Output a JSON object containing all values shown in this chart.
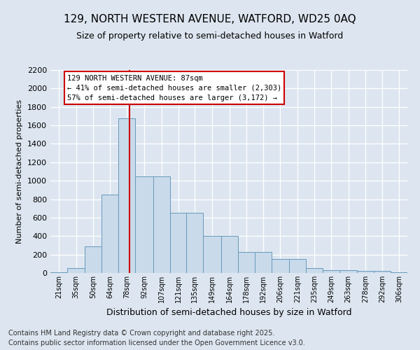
{
  "title": "129, NORTH WESTERN AVENUE, WATFORD, WD25 0AQ",
  "subtitle": "Size of property relative to semi-detached houses in Watford",
  "xlabel": "Distribution of semi-detached houses by size in Watford",
  "ylabel": "Number of semi-detached properties",
  "categories": [
    "21sqm",
    "35sqm",
    "50sqm",
    "64sqm",
    "78sqm",
    "92sqm",
    "107sqm",
    "121sqm",
    "135sqm",
    "149sqm",
    "164sqm",
    "178sqm",
    "192sqm",
    "206sqm",
    "221sqm",
    "235sqm",
    "249sqm",
    "263sqm",
    "278sqm",
    "292sqm",
    "306sqm"
  ],
  "bin_edges": [
    21,
    35,
    50,
    64,
    78,
    92,
    107,
    121,
    135,
    149,
    164,
    178,
    192,
    206,
    221,
    235,
    249,
    263,
    278,
    292,
    306,
    320
  ],
  "values": [
    10,
    50,
    290,
    850,
    1680,
    1050,
    1050,
    650,
    650,
    400,
    400,
    230,
    230,
    155,
    155,
    50,
    30,
    30,
    20,
    20,
    10
  ],
  "bar_color": "#c9daea",
  "bar_edge_color": "#6699bb",
  "vline_x": 87,
  "vline_color": "#cc0000",
  "annotation_text": "129 NORTH WESTERN AVENUE: 87sqm\n← 41% of semi-detached houses are smaller (2,303)\n57% of semi-detached houses are larger (3,172) →",
  "annotation_box_facecolor": "#ffffff",
  "annotation_box_edgecolor": "#cc0000",
  "ylim": [
    0,
    2200
  ],
  "yticks": [
    0,
    200,
    400,
    600,
    800,
    1000,
    1200,
    1400,
    1600,
    1800,
    2000,
    2200
  ],
  "background_color": "#dde6f0",
  "grid_color": "#ffffff",
  "title_fontsize": 11,
  "subtitle_fontsize": 9,
  "ylabel_fontsize": 8,
  "xlabel_fontsize": 9,
  "tick_fontsize": 7,
  "ytick_fontsize": 8,
  "annotation_fontsize": 7.5,
  "footer_text": "Contains HM Land Registry data © Crown copyright and database right 2025.\nContains public sector information licensed under the Open Government Licence v3.0.",
  "footer_fontsize": 7
}
